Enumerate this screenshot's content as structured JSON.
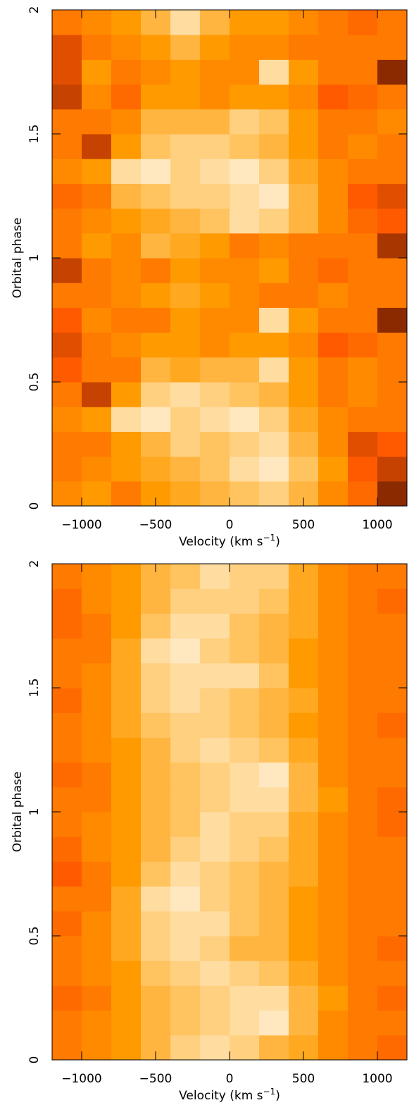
{
  "chart_data": [
    {
      "type": "heatmap",
      "ylabel": "Orbital phase",
      "xlabel": "Velocity (km s",
      "xlabel_sup": "−1",
      "xlabel_end": ")",
      "xlim": [
        -1200,
        1200
      ],
      "ylim": [
        0,
        2
      ],
      "xticks": [
        {
          "value": -1000,
          "label": "−1000"
        },
        {
          "value": -500,
          "label": "−500"
        },
        0,
        500,
        1000
      ],
      "yticks": [
        0,
        0.5,
        1,
        1.5,
        2
      ],
      "colormap": [
        "#1a0500",
        "#8b2a00",
        "#ff5a00",
        "#ff9a00",
        "#ffd080",
        "#ffffff"
      ],
      "xbins": [
        -1200,
        -1000,
        -800,
        -600,
        -400,
        -200,
        0,
        200,
        400,
        600,
        800,
        1000,
        1200
      ],
      "ybins": [
        0,
        0.1,
        0.2,
        0.3,
        0.4,
        0.5,
        0.6,
        0.7,
        0.8,
        0.9,
        1,
        1.1,
        1.2,
        1.3,
        1.4,
        1.5,
        1.6,
        1.7,
        1.8,
        1.9,
        2
      ],
      "z": [
        [
          0.55,
          0.6,
          0.5,
          0.6,
          0.65,
          0.7,
          0.75,
          0.8,
          0.7,
          0.55,
          0.45,
          0.2
        ],
        [
          0.5,
          0.55,
          0.6,
          0.65,
          0.7,
          0.75,
          0.85,
          0.9,
          0.75,
          0.6,
          0.4,
          0.3
        ],
        [
          0.5,
          0.5,
          0.6,
          0.7,
          0.8,
          0.75,
          0.8,
          0.85,
          0.7,
          0.55,
          0.35,
          0.4
        ],
        [
          0.55,
          0.6,
          0.85,
          0.9,
          0.8,
          0.85,
          0.9,
          0.8,
          0.65,
          0.55,
          0.5,
          0.5
        ],
        [
          0.5,
          0.3,
          0.6,
          0.8,
          0.85,
          0.8,
          0.75,
          0.7,
          0.6,
          0.5,
          0.55,
          0.5
        ],
        [
          0.4,
          0.5,
          0.5,
          0.7,
          0.65,
          0.7,
          0.7,
          0.85,
          0.6,
          0.5,
          0.55,
          0.5
        ],
        [
          0.35,
          0.5,
          0.55,
          0.6,
          0.6,
          0.55,
          0.6,
          0.6,
          0.55,
          0.4,
          0.45,
          0.5
        ],
        [
          0.4,
          0.55,
          0.5,
          0.5,
          0.6,
          0.55,
          0.55,
          0.85,
          0.6,
          0.5,
          0.5,
          0.2
        ],
        [
          0.5,
          0.5,
          0.55,
          0.6,
          0.65,
          0.6,
          0.55,
          0.5,
          0.5,
          0.55,
          0.5,
          0.5
        ],
        [
          0.3,
          0.5,
          0.55,
          0.5,
          0.6,
          0.55,
          0.55,
          0.6,
          0.5,
          0.45,
          0.5,
          0.5
        ],
        [
          0.5,
          0.6,
          0.55,
          0.7,
          0.65,
          0.6,
          0.5,
          0.55,
          0.5,
          0.5,
          0.5,
          0.25
        ],
        [
          0.5,
          0.55,
          0.6,
          0.65,
          0.7,
          0.75,
          0.85,
          0.8,
          0.7,
          0.55,
          0.45,
          0.4
        ],
        [
          0.45,
          0.5,
          0.7,
          0.75,
          0.8,
          0.8,
          0.85,
          0.9,
          0.7,
          0.55,
          0.4,
          0.35
        ],
        [
          0.55,
          0.6,
          0.85,
          0.9,
          0.8,
          0.85,
          0.9,
          0.8,
          0.65,
          0.55,
          0.5,
          0.5
        ],
        [
          0.5,
          0.3,
          0.6,
          0.75,
          0.8,
          0.8,
          0.75,
          0.7,
          0.6,
          0.5,
          0.55,
          0.5
        ],
        [
          0.5,
          0.5,
          0.55,
          0.7,
          0.7,
          0.7,
          0.8,
          0.75,
          0.6,
          0.5,
          0.5,
          0.55
        ],
        [
          0.3,
          0.55,
          0.45,
          0.6,
          0.6,
          0.55,
          0.6,
          0.6,
          0.55,
          0.4,
          0.45,
          0.5
        ],
        [
          0.35,
          0.6,
          0.5,
          0.55,
          0.6,
          0.55,
          0.55,
          0.85,
          0.6,
          0.5,
          0.5,
          0.2
        ],
        [
          0.35,
          0.5,
          0.55,
          0.6,
          0.7,
          0.6,
          0.55,
          0.55,
          0.5,
          0.5,
          0.5,
          0.5
        ],
        [
          0.5,
          0.55,
          0.6,
          0.7,
          0.85,
          0.7,
          0.6,
          0.6,
          0.55,
          0.5,
          0.45,
          0.5
        ]
      ]
    },
    {
      "type": "heatmap",
      "ylabel": "Orbital phase",
      "xlabel": "Velocity (km s",
      "xlabel_sup": "−1",
      "xlabel_end": ")",
      "xlim": [
        -1200,
        1200
      ],
      "ylim": [
        0,
        2
      ],
      "xticks": [
        {
          "value": -1000,
          "label": "−1000"
        },
        {
          "value": -500,
          "label": "−500"
        },
        0,
        500,
        1000
      ],
      "yticks": [
        0,
        0.5,
        1,
        1.5,
        2
      ],
      "colormap": [
        "#1a0500",
        "#8b2a00",
        "#ff5a00",
        "#ff9a00",
        "#ffd080",
        "#ffffff"
      ],
      "xbins": [
        -1200,
        -1000,
        -800,
        -600,
        -400,
        -200,
        0,
        200,
        400,
        600,
        800,
        1000,
        1200
      ],
      "ybins": [
        0,
        0.1,
        0.2,
        0.3,
        0.4,
        0.5,
        0.6,
        0.7,
        0.8,
        0.9,
        1,
        1.1,
        1.2,
        1.3,
        1.4,
        1.5,
        1.6,
        1.7,
        1.8,
        1.9,
        2
      ],
      "z": [
        [
          0.5,
          0.55,
          0.6,
          0.7,
          0.8,
          0.85,
          0.8,
          0.7,
          0.65,
          0.55,
          0.5,
          0.45
        ],
        [
          0.5,
          0.55,
          0.6,
          0.7,
          0.75,
          0.8,
          0.85,
          0.9,
          0.7,
          0.55,
          0.5,
          0.5
        ],
        [
          0.45,
          0.5,
          0.6,
          0.7,
          0.75,
          0.8,
          0.85,
          0.85,
          0.7,
          0.6,
          0.5,
          0.45
        ],
        [
          0.5,
          0.55,
          0.6,
          0.75,
          0.8,
          0.85,
          0.8,
          0.75,
          0.65,
          0.55,
          0.5,
          0.5
        ],
        [
          0.5,
          0.55,
          0.65,
          0.8,
          0.85,
          0.8,
          0.7,
          0.7,
          0.6,
          0.55,
          0.5,
          0.45
        ],
        [
          0.45,
          0.55,
          0.65,
          0.8,
          0.85,
          0.85,
          0.75,
          0.7,
          0.6,
          0.55,
          0.5,
          0.5
        ],
        [
          0.5,
          0.5,
          0.65,
          0.85,
          0.9,
          0.8,
          0.75,
          0.7,
          0.6,
          0.55,
          0.5,
          0.5
        ],
        [
          0.4,
          0.5,
          0.6,
          0.75,
          0.85,
          0.8,
          0.75,
          0.7,
          0.65,
          0.55,
          0.5,
          0.5
        ],
        [
          0.45,
          0.55,
          0.6,
          0.7,
          0.8,
          0.85,
          0.8,
          0.75,
          0.65,
          0.55,
          0.5,
          0.5
        ],
        [
          0.5,
          0.55,
          0.6,
          0.7,
          0.75,
          0.85,
          0.8,
          0.8,
          0.65,
          0.55,
          0.5,
          0.45
        ],
        [
          0.5,
          0.5,
          0.6,
          0.7,
          0.75,
          0.8,
          0.85,
          0.85,
          0.7,
          0.6,
          0.5,
          0.45
        ],
        [
          0.45,
          0.5,
          0.6,
          0.7,
          0.75,
          0.8,
          0.85,
          0.9,
          0.7,
          0.55,
          0.5,
          0.5
        ],
        [
          0.5,
          0.55,
          0.6,
          0.7,
          0.8,
          0.85,
          0.8,
          0.75,
          0.65,
          0.55,
          0.5,
          0.5
        ],
        [
          0.5,
          0.55,
          0.65,
          0.75,
          0.8,
          0.8,
          0.75,
          0.7,
          0.6,
          0.55,
          0.5,
          0.45
        ],
        [
          0.45,
          0.55,
          0.65,
          0.8,
          0.85,
          0.8,
          0.75,
          0.7,
          0.65,
          0.55,
          0.5,
          0.5
        ],
        [
          0.5,
          0.55,
          0.65,
          0.8,
          0.85,
          0.85,
          0.85,
          0.75,
          0.6,
          0.55,
          0.5,
          0.5
        ],
        [
          0.5,
          0.5,
          0.65,
          0.85,
          0.9,
          0.8,
          0.75,
          0.7,
          0.6,
          0.55,
          0.5,
          0.5
        ],
        [
          0.45,
          0.5,
          0.6,
          0.75,
          0.85,
          0.85,
          0.75,
          0.7,
          0.65,
          0.55,
          0.5,
          0.5
        ],
        [
          0.45,
          0.55,
          0.6,
          0.7,
          0.8,
          0.8,
          0.8,
          0.75,
          0.65,
          0.55,
          0.5,
          0.45
        ],
        [
          0.5,
          0.55,
          0.6,
          0.7,
          0.75,
          0.85,
          0.8,
          0.8,
          0.65,
          0.55,
          0.5,
          0.5
        ]
      ]
    }
  ]
}
